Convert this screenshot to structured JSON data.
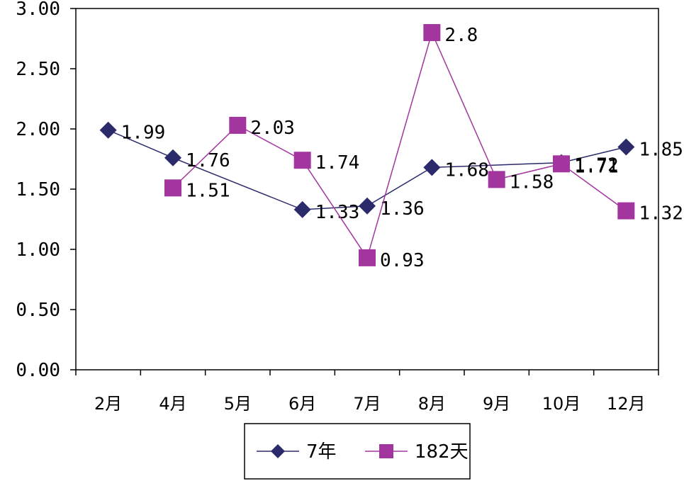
{
  "chart_data": {
    "type": "line",
    "categories": [
      "2月",
      "4月",
      "5月",
      "6月",
      "7月",
      "8月",
      "9月",
      "10月",
      "12月"
    ],
    "ylim": [
      0,
      3
    ],
    "yticks": [
      "0.00",
      "0.50",
      "1.00",
      "1.50",
      "2.00",
      "2.50",
      "3.00"
    ],
    "grid": false,
    "legend_position": "bottom",
    "series": [
      {
        "name": "7年",
        "marker": "diamond",
        "color": "#2b2a6b",
        "values": [
          1.99,
          1.76,
          null,
          1.33,
          1.36,
          1.68,
          null,
          1.72,
          1.85
        ],
        "labels": [
          "1.99",
          "1.76",
          "",
          "1.33",
          "1.36",
          "1.68",
          "",
          "1.72",
          "1.85"
        ]
      },
      {
        "name": "182天",
        "marker": "square",
        "color": "#a3359f",
        "values": [
          null,
          1.51,
          2.03,
          1.74,
          0.93,
          2.8,
          1.58,
          1.71,
          1.32
        ],
        "labels": [
          "",
          "1.51",
          "2.03",
          "1.74",
          "0.93",
          "2.8",
          "1.58",
          "1.71",
          "1.32"
        ]
      }
    ]
  }
}
